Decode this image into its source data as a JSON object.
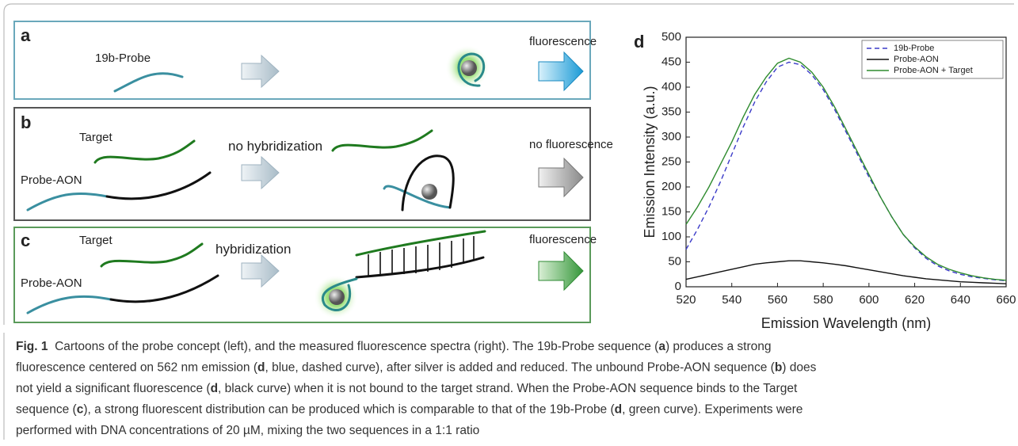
{
  "panels": {
    "a": {
      "label": "a",
      "probe": "19b-Probe"
    },
    "b": {
      "label": "b",
      "target": "Target",
      "note": "no hybridization",
      "probe": "Probe-AON"
    },
    "c": {
      "label": "c",
      "target": "Target",
      "note": "hybridization",
      "probe": "Probe-AON"
    },
    "d": {
      "label": "d"
    }
  },
  "outcomes": [
    "fluorescence",
    "no fluorescence",
    "fluorescence"
  ],
  "chart_data": {
    "type": "line",
    "xlabel": "Emission Wavelength (nm)",
    "ylabel": "Emission Intensity (a.u.)",
    "x": [
      520,
      525,
      530,
      535,
      540,
      545,
      550,
      555,
      560,
      565,
      570,
      575,
      580,
      585,
      590,
      595,
      600,
      605,
      610,
      615,
      620,
      625,
      630,
      635,
      640,
      645,
      650,
      655,
      660
    ],
    "series": [
      {
        "name": "19b-Probe",
        "color": "#3b3bc8",
        "dashed": true,
        "values": [
          75,
          115,
          160,
          210,
          265,
          320,
          370,
          410,
          440,
          450,
          445,
          425,
          395,
          355,
          310,
          265,
          220,
          180,
          140,
          105,
          78,
          57,
          42,
          32,
          25,
          20,
          17,
          14,
          12
        ]
      },
      {
        "name": "Probe-AON",
        "color": "#111111",
        "dashed": false,
        "values": [
          15,
          20,
          25,
          30,
          35,
          40,
          45,
          48,
          50,
          52,
          52,
          50,
          48,
          45,
          42,
          38,
          34,
          30,
          26,
          22,
          19,
          16,
          14,
          12,
          10,
          9,
          8,
          7,
          6
        ]
      },
      {
        "name": "Probe-AON + Target",
        "color": "#2e8b2e",
        "dashed": false,
        "values": [
          125,
          160,
          200,
          245,
          290,
          340,
          385,
          420,
          448,
          458,
          450,
          430,
          400,
          360,
          315,
          270,
          225,
          180,
          140,
          105,
          80,
          60,
          45,
          35,
          28,
          22,
          18,
          15,
          13
        ]
      }
    ],
    "xlim": [
      520,
      660
    ],
    "xticks": [
      520,
      540,
      560,
      580,
      600,
      620,
      640,
      660
    ],
    "ylim": [
      0,
      500
    ],
    "yticks": [
      0,
      50,
      100,
      150,
      200,
      250,
      300,
      350,
      400,
      450,
      500
    ],
    "legend": "upper right"
  },
  "caption": {
    "lines": [
      [
        {
          "text": "Fig. 1",
          "bold": true
        },
        {
          "text": "  Cartoons of the probe concept (left), and the measured fluorescence spectra (right). The 19b-Probe sequence (",
          "bold": false
        },
        {
          "text": "a",
          "bold": true
        },
        {
          "text": ") produces a strong",
          "bold": false
        }
      ],
      [
        {
          "text": "fluorescence centered on 562 nm emission (",
          "bold": false
        },
        {
          "text": "d",
          "bold": true
        },
        {
          "text": ", blue, dashed curve), after silver is added and reduced. The unbound Probe-AON sequence (",
          "bold": false
        },
        {
          "text": "b",
          "bold": true
        },
        {
          "text": ") does",
          "bold": false
        }
      ],
      [
        {
          "text": "not yield a significant fluorescence (",
          "bold": false
        },
        {
          "text": "d",
          "bold": true
        },
        {
          "text": ", black curve) when it is not bound to the target strand. When the Probe-AON sequence binds to the Target",
          "bold": false
        }
      ],
      [
        {
          "text": "sequence (",
          "bold": false
        },
        {
          "text": "c",
          "bold": true
        },
        {
          "text": "), a strong fluorescent distribution can be produced which is comparable to that of the 19b-Probe (",
          "bold": false
        },
        {
          "text": "d",
          "bold": true
        },
        {
          "text": ", green curve). Experiments were",
          "bold": false
        }
      ],
      [
        {
          "text": "performed with DNA concentrations of 20 µM, mixing the two sequences in a 1:1 ratio",
          "bold": false
        }
      ]
    ]
  }
}
